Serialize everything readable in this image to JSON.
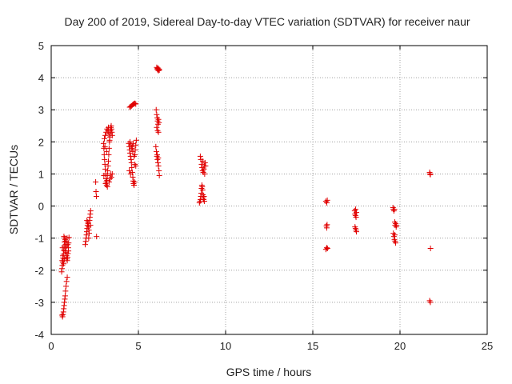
{
  "chart_data": {
    "type": "scatter",
    "title": "Day 200 of 2019, Sidereal Day-to-day VTEC variation (SDTVAR) for receiver naur",
    "xlabel": "GPS time / hours",
    "ylabel": "SDTVAR / TECUs",
    "xlim": [
      0,
      25
    ],
    "ylim": [
      -4,
      5
    ],
    "xticks": [
      0,
      5,
      10,
      15,
      20,
      25
    ],
    "yticks": [
      -4,
      -3,
      -2,
      -1,
      0,
      1,
      2,
      3,
      4,
      5
    ],
    "grid": true,
    "marker": "+",
    "color": "#e00000",
    "series": [
      {
        "name": "SDTVAR",
        "points": [
          [
            0.62,
            -3.4
          ],
          [
            0.65,
            -3.45
          ],
          [
            0.68,
            -3.38
          ],
          [
            0.7,
            -3.3
          ],
          [
            0.72,
            -3.2
          ],
          [
            0.74,
            -3.1
          ],
          [
            0.76,
            -3.0
          ],
          [
            0.78,
            -2.9
          ],
          [
            0.8,
            -2.8
          ],
          [
            0.82,
            -2.65
          ],
          [
            0.85,
            -2.5
          ],
          [
            0.88,
            -2.35
          ],
          [
            0.92,
            -2.22
          ],
          [
            0.6,
            -2.05
          ],
          [
            0.62,
            -1.95
          ],
          [
            0.64,
            -1.85
          ],
          [
            0.66,
            -1.75
          ],
          [
            0.68,
            -1.62
          ],
          [
            0.7,
            -1.5
          ],
          [
            0.72,
            -1.38
          ],
          [
            0.74,
            -1.25
          ],
          [
            0.76,
            -1.12
          ],
          [
            0.78,
            -1.0
          ],
          [
            0.8,
            -1.05
          ],
          [
            0.82,
            -1.2
          ],
          [
            0.84,
            -1.3
          ],
          [
            0.86,
            -1.45
          ],
          [
            0.88,
            -1.55
          ],
          [
            0.9,
            -1.65
          ],
          [
            0.92,
            -1.7
          ],
          [
            0.94,
            -1.6
          ],
          [
            0.96,
            -1.48
          ],
          [
            0.98,
            -1.3
          ],
          [
            1.0,
            -1.15
          ],
          [
            1.02,
            -0.98
          ],
          [
            0.63,
            -1.7
          ],
          [
            0.67,
            -1.55
          ],
          [
            0.71,
            -1.8
          ],
          [
            0.75,
            -1.65
          ],
          [
            0.79,
            -1.4
          ],
          [
            0.83,
            -1.1
          ],
          [
            0.87,
            -1.25
          ],
          [
            0.91,
            -1.0
          ],
          [
            0.95,
            -1.2
          ],
          [
            0.99,
            -1.4
          ],
          [
            0.65,
            -1.3
          ],
          [
            0.73,
            -0.95
          ],
          [
            1.95,
            -1.2
          ],
          [
            1.98,
            -1.1
          ],
          [
            2.0,
            -1.0
          ],
          [
            2.02,
            -0.9
          ],
          [
            2.04,
            -0.8
          ],
          [
            2.06,
            -0.7
          ],
          [
            2.08,
            -0.6
          ],
          [
            2.1,
            -0.5
          ],
          [
            2.12,
            -0.55
          ],
          [
            2.14,
            -0.65
          ],
          [
            2.16,
            -0.75
          ],
          [
            2.18,
            -0.85
          ],
          [
            2.2,
            -0.45
          ],
          [
            2.22,
            -0.35
          ],
          [
            2.24,
            -0.25
          ],
          [
            2.26,
            -0.15
          ],
          [
            2.05,
            -0.45
          ],
          [
            2.15,
            -1.0
          ],
          [
            2.25,
            -0.6
          ],
          [
            2.55,
            0.75
          ],
          [
            2.57,
            0.45
          ],
          [
            2.59,
            0.3
          ],
          [
            2.6,
            -0.95
          ],
          [
            3.0,
            1.95
          ],
          [
            3.02,
            1.8
          ],
          [
            3.04,
            1.6
          ],
          [
            3.06,
            1.45
          ],
          [
            3.08,
            1.3
          ],
          [
            3.1,
            1.15
          ],
          [
            3.12,
            1.0
          ],
          [
            3.14,
            0.85
          ],
          [
            3.16,
            0.75
          ],
          [
            3.18,
            0.65
          ],
          [
            3.2,
            0.8
          ],
          [
            3.22,
            0.95
          ],
          [
            3.24,
            1.1
          ],
          [
            3.26,
            1.25
          ],
          [
            3.28,
            1.4
          ],
          [
            3.3,
            1.6
          ],
          [
            3.32,
            1.8
          ],
          [
            3.34,
            2.0
          ],
          [
            3.36,
            2.15
          ],
          [
            3.38,
            2.25
          ],
          [
            3.4,
            2.35
          ],
          [
            3.42,
            2.45
          ],
          [
            3.44,
            2.5
          ],
          [
            3.46,
            2.4
          ],
          [
            3.48,
            2.3
          ],
          [
            3.5,
            2.2
          ],
          [
            3.05,
            2.1
          ],
          [
            3.1,
            2.2
          ],
          [
            3.15,
            2.3
          ],
          [
            3.2,
            2.4
          ],
          [
            3.25,
            2.35
          ],
          [
            3.3,
            2.25
          ],
          [
            3.35,
            2.05
          ],
          [
            3.4,
            1.0
          ],
          [
            3.45,
            0.9
          ],
          [
            3.5,
            1.0
          ],
          [
            3.12,
            0.7
          ],
          [
            3.22,
            0.6
          ],
          [
            3.32,
            0.75
          ],
          [
            3.02,
            0.95
          ],
          [
            3.08,
            1.85
          ],
          [
            3.18,
            1.7
          ],
          [
            3.28,
            2.45
          ],
          [
            3.38,
            0.85
          ],
          [
            4.5,
            3.08
          ],
          [
            4.55,
            3.1
          ],
          [
            4.6,
            3.12
          ],
          [
            4.65,
            3.15
          ],
          [
            4.7,
            3.17
          ],
          [
            4.75,
            3.19
          ],
          [
            4.8,
            3.2
          ],
          [
            4.85,
            3.18
          ],
          [
            4.45,
            1.95
          ],
          [
            4.48,
            1.85
          ],
          [
            4.5,
            1.75
          ],
          [
            4.52,
            1.65
          ],
          [
            4.55,
            1.55
          ],
          [
            4.58,
            1.45
          ],
          [
            4.6,
            1.35
          ],
          [
            4.62,
            1.2
          ],
          [
            4.65,
            1.05
          ],
          [
            4.68,
            0.9
          ],
          [
            4.7,
            0.78
          ],
          [
            4.72,
            0.7
          ],
          [
            4.75,
            0.65
          ],
          [
            4.78,
            0.75
          ],
          [
            4.8,
            1.6
          ],
          [
            4.82,
            1.75
          ],
          [
            4.85,
            1.9
          ],
          [
            4.88,
            2.05
          ],
          [
            4.48,
            1.1
          ],
          [
            4.55,
            1.0
          ],
          [
            4.62,
            1.8
          ],
          [
            4.68,
            1.7
          ],
          [
            4.75,
            1.55
          ],
          [
            4.8,
            1.3
          ],
          [
            4.52,
            2.0
          ],
          [
            4.58,
            1.9
          ],
          [
            4.65,
            1.85
          ],
          [
            4.7,
            1.95
          ],
          [
            4.85,
            1.25
          ],
          [
            6.05,
            4.32
          ],
          [
            6.08,
            4.28
          ],
          [
            6.1,
            4.25
          ],
          [
            6.12,
            4.3
          ],
          [
            6.15,
            4.22
          ],
          [
            6.18,
            4.27
          ],
          [
            6.2,
            4.24
          ],
          [
            6.02,
            3.0
          ],
          [
            6.05,
            2.85
          ],
          [
            6.08,
            2.75
          ],
          [
            6.1,
            2.65
          ],
          [
            6.12,
            2.55
          ],
          [
            6.15,
            2.7
          ],
          [
            6.18,
            2.6
          ],
          [
            6.05,
            2.45
          ],
          [
            6.1,
            2.35
          ],
          [
            6.15,
            2.3
          ],
          [
            6.0,
            1.85
          ],
          [
            6.03,
            1.7
          ],
          [
            6.06,
            1.55
          ],
          [
            6.09,
            1.45
          ],
          [
            6.12,
            1.35
          ],
          [
            6.15,
            1.25
          ],
          [
            6.18,
            1.1
          ],
          [
            6.2,
            0.95
          ],
          [
            6.08,
            1.6
          ],
          [
            6.14,
            1.5
          ],
          [
            8.5,
            0.1
          ],
          [
            8.53,
            0.15
          ],
          [
            8.56,
            0.2
          ],
          [
            8.58,
            0.3
          ],
          [
            8.6,
            0.4
          ],
          [
            8.62,
            0.55
          ],
          [
            8.64,
            0.65
          ],
          [
            8.66,
            0.6
          ],
          [
            8.68,
            0.5
          ],
          [
            8.7,
            0.35
          ],
          [
            8.72,
            0.25
          ],
          [
            8.74,
            0.2
          ],
          [
            8.76,
            0.3
          ],
          [
            8.78,
            0.15
          ],
          [
            8.55,
            1.55
          ],
          [
            8.58,
            1.45
          ],
          [
            8.62,
            1.3
          ],
          [
            8.65,
            1.2
          ],
          [
            8.68,
            1.1
          ],
          [
            8.72,
            1.05
          ],
          [
            8.75,
            1.15
          ],
          [
            8.78,
            1.25
          ],
          [
            8.82,
            1.35
          ],
          [
            8.85,
            1.25
          ],
          [
            8.7,
            1.4
          ],
          [
            8.8,
            1.0
          ],
          [
            15.75,
            0.15
          ],
          [
            15.8,
            0.1
          ],
          [
            15.83,
            0.18
          ],
          [
            15.78,
            -0.62
          ],
          [
            15.82,
            -0.58
          ],
          [
            15.8,
            -0.68
          ],
          [
            15.75,
            -1.35
          ],
          [
            15.8,
            -1.3
          ],
          [
            15.84,
            -1.32
          ],
          [
            17.4,
            -0.15
          ],
          [
            17.42,
            -0.25
          ],
          [
            17.45,
            -0.3
          ],
          [
            17.48,
            -0.35
          ],
          [
            17.5,
            -0.2
          ],
          [
            17.45,
            -0.1
          ],
          [
            17.42,
            -0.65
          ],
          [
            17.45,
            -0.7
          ],
          [
            17.48,
            -0.75
          ],
          [
            17.5,
            -0.8
          ],
          [
            19.6,
            -0.05
          ],
          [
            19.62,
            -0.1
          ],
          [
            19.65,
            -0.15
          ],
          [
            19.68,
            -0.1
          ],
          [
            19.7,
            -0.5
          ],
          [
            19.72,
            -0.6
          ],
          [
            19.75,
            -0.55
          ],
          [
            19.78,
            -0.65
          ],
          [
            19.8,
            -0.6
          ],
          [
            19.62,
            -0.85
          ],
          [
            19.65,
            -0.95
          ],
          [
            19.68,
            -1.05
          ],
          [
            19.72,
            -1.1
          ],
          [
            19.75,
            -1.15
          ],
          [
            19.7,
            -0.9
          ],
          [
            21.7,
            1.05
          ],
          [
            21.72,
            1.0
          ],
          [
            21.74,
            0.98
          ],
          [
            21.75,
            -1.32
          ],
          [
            21.7,
            -2.95
          ],
          [
            21.74,
            -3.0
          ]
        ]
      }
    ]
  }
}
